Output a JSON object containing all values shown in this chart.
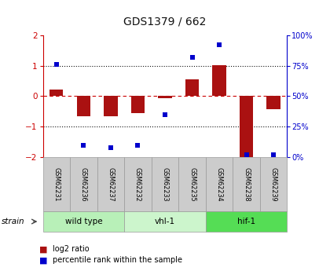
{
  "title": "GDS1379 / 662",
  "samples": [
    "GSM62231",
    "GSM62236",
    "GSM62237",
    "GSM62232",
    "GSM62233",
    "GSM62235",
    "GSM62234",
    "GSM62238",
    "GSM62239"
  ],
  "groups": [
    {
      "label": "wild type",
      "count": 3,
      "color": "#b8f0b8"
    },
    {
      "label": "vhl-1",
      "count": 3,
      "color": "#ccf5cc"
    },
    {
      "label": "hif-1",
      "count": 3,
      "color": "#55dd55"
    }
  ],
  "log2_ratio": [
    0.22,
    -0.65,
    -0.65,
    -0.55,
    -0.06,
    0.55,
    1.02,
    -2.05,
    -0.42
  ],
  "percentile_rank": [
    76,
    10,
    8,
    10,
    35,
    82,
    92,
    2,
    2
  ],
  "ylim": [
    -2.0,
    2.0
  ],
  "bar_color": "#aa1111",
  "dot_color": "#0000cc",
  "title_color": "#111111",
  "left_tick_color": "#cc0000",
  "right_tick_color": "#0000cc",
  "zero_line_color": "#cc0000",
  "grid_color": "#111111",
  "sample_box_color": "#cccccc",
  "sample_box_edge": "#999999"
}
